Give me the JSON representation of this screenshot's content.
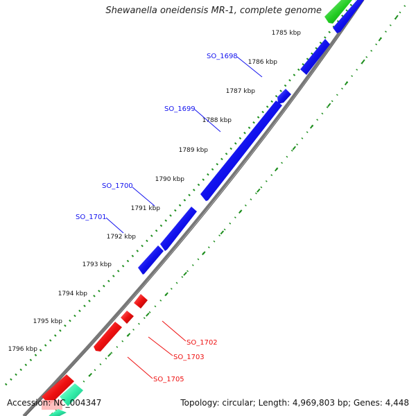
{
  "title": "Shewanella oneidensis MR-1, complete genome",
  "footer": {
    "accession": "Accession: NC_004347",
    "summary": "Topology: circular; Length: 4,969,803 bp; Genes: 4,448"
  },
  "colors": {
    "forward_gene": "#1010ee",
    "reverse_gene": "#ee1010",
    "rna_green": "#22cc22",
    "rna_teal": "#33eeaa",
    "backbone": "#777777",
    "tick_green": "#1e8e1e"
  },
  "ticks": [
    {
      "label": "1785 kbp"
    },
    {
      "label": "1786 kbp"
    },
    {
      "label": "1787 kbp"
    },
    {
      "label": "1788 kbp"
    },
    {
      "label": "1789 kbp"
    },
    {
      "label": "1790 kbp"
    },
    {
      "label": "1791 kbp"
    },
    {
      "label": "1792 kbp"
    },
    {
      "label": "1793 kbp"
    },
    {
      "label": "1794 kbp"
    },
    {
      "label": "1795 kbp"
    },
    {
      "label": "1796 kbp"
    }
  ],
  "gene_labels": [
    {
      "name": "SO_1698",
      "strand": "forward"
    },
    {
      "name": "SO_1699",
      "strand": "forward"
    },
    {
      "name": "SO_1700",
      "strand": "forward"
    },
    {
      "name": "SO_1701",
      "strand": "forward"
    },
    {
      "name": "SO_1702",
      "strand": "reverse"
    },
    {
      "name": "SO_1703",
      "strand": "reverse"
    },
    {
      "name": "SO_1705",
      "strand": "reverse"
    }
  ]
}
